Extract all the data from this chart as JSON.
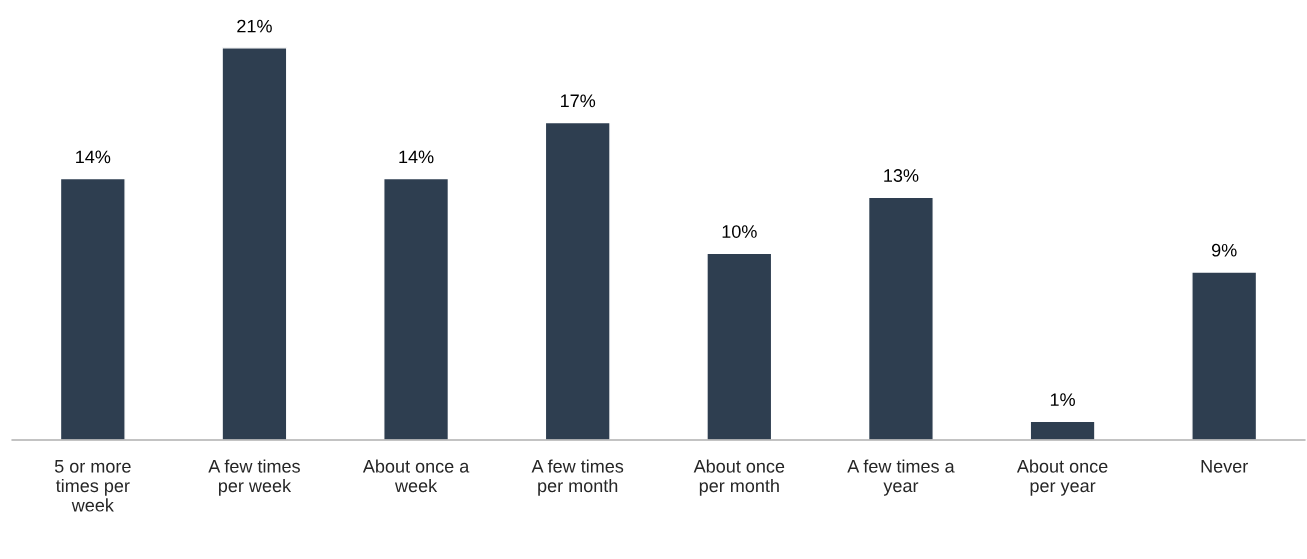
{
  "chart_data": {
    "type": "bar",
    "categories": [
      "5 or more\ntimes per\nweek",
      "A few times\nper week",
      "About once a\nweek",
      "A few times\nper month",
      "About once\nper month",
      "A few times a\nyear",
      "About once\nper year",
      "Never"
    ],
    "values": [
      14,
      21,
      14,
      17,
      10,
      13,
      1,
      9
    ],
    "value_labels": [
      "14%",
      "21%",
      "14%",
      "17%",
      "10%",
      "13%",
      "1%",
      "9%"
    ],
    "color": "#2e3e50",
    "grid": false,
    "legend": false
  }
}
